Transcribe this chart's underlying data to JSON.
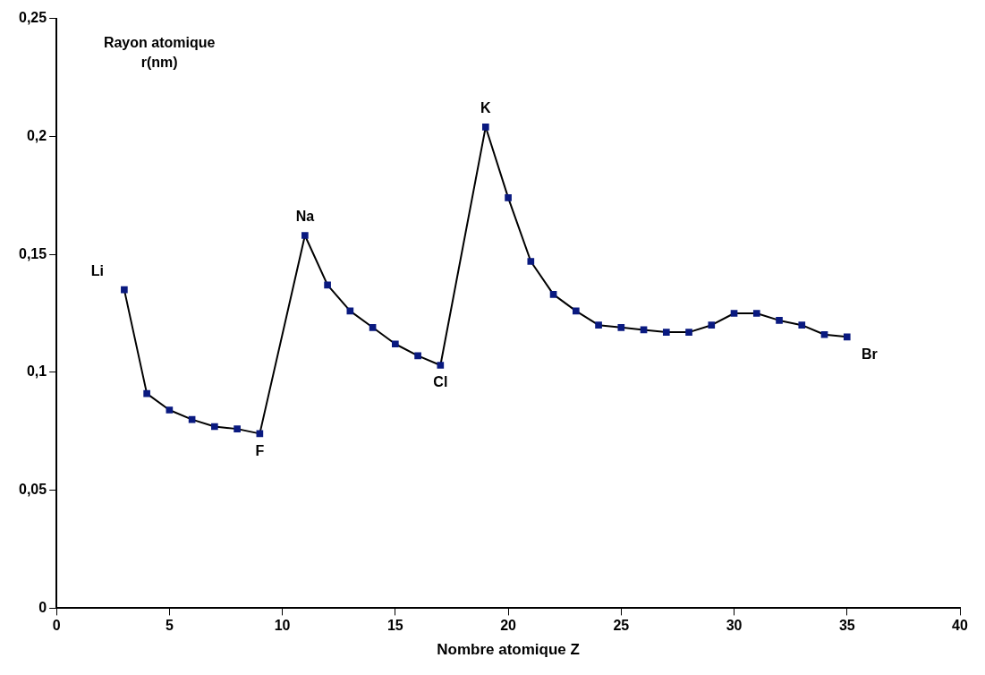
{
  "chart_data": {
    "type": "line",
    "xlabel": "Nombre atomique Z",
    "ylabel": "Rayon atomique\nr(nm)",
    "series": [
      {
        "color": "#000000",
        "x": [
          3,
          4,
          5,
          6,
          7,
          8,
          9,
          11,
          12,
          13,
          14,
          15,
          16,
          17,
          19,
          20,
          21,
          22,
          23,
          24,
          25,
          26,
          27,
          28,
          29,
          30,
          31,
          32,
          33,
          34,
          35
        ],
        "values": [
          0.135,
          0.091,
          0.084,
          0.08,
          0.077,
          0.076,
          0.074,
          0.158,
          0.137,
          0.126,
          0.119,
          0.112,
          0.107,
          0.103,
          0.204,
          0.174,
          0.147,
          0.133,
          0.126,
          0.12,
          0.119,
          0.118,
          0.117,
          0.117,
          0.12,
          0.125,
          0.125,
          0.122,
          0.12,
          0.116,
          0.115
        ]
      }
    ],
    "xlim": [
      0,
      40
    ],
    "xticks": [
      0,
      5,
      10,
      15,
      20,
      25,
      30,
      35,
      40
    ],
    "ylim": [
      0,
      0.25
    ],
    "yticks": [
      0,
      {
        "value": 0.05,
        "label": "0,05"
      },
      {
        "value": 0.1,
        "label": "0,1"
      },
      {
        "value": 0.15,
        "label": "0,15"
      },
      {
        "value": 0.2,
        "label": "0,2"
      },
      {
        "value": 0.25,
        "label": "0,25"
      }
    ],
    "marker": "square",
    "line_style": "solid",
    "grid": false,
    "legend": false,
    "annotations": [
      {
        "text": "Li",
        "x": 3,
        "y": 0.135
      },
      {
        "text": "F",
        "x": 9,
        "y": 0.074
      },
      {
        "text": "Na",
        "x": 11,
        "y": 0.158
      },
      {
        "text": "Cl",
        "x": 17,
        "y": 0.103
      },
      {
        "text": "K",
        "x": 19,
        "y": 0.204
      },
      {
        "text": "Br",
        "x": 35,
        "y": 0.115
      }
    ]
  }
}
